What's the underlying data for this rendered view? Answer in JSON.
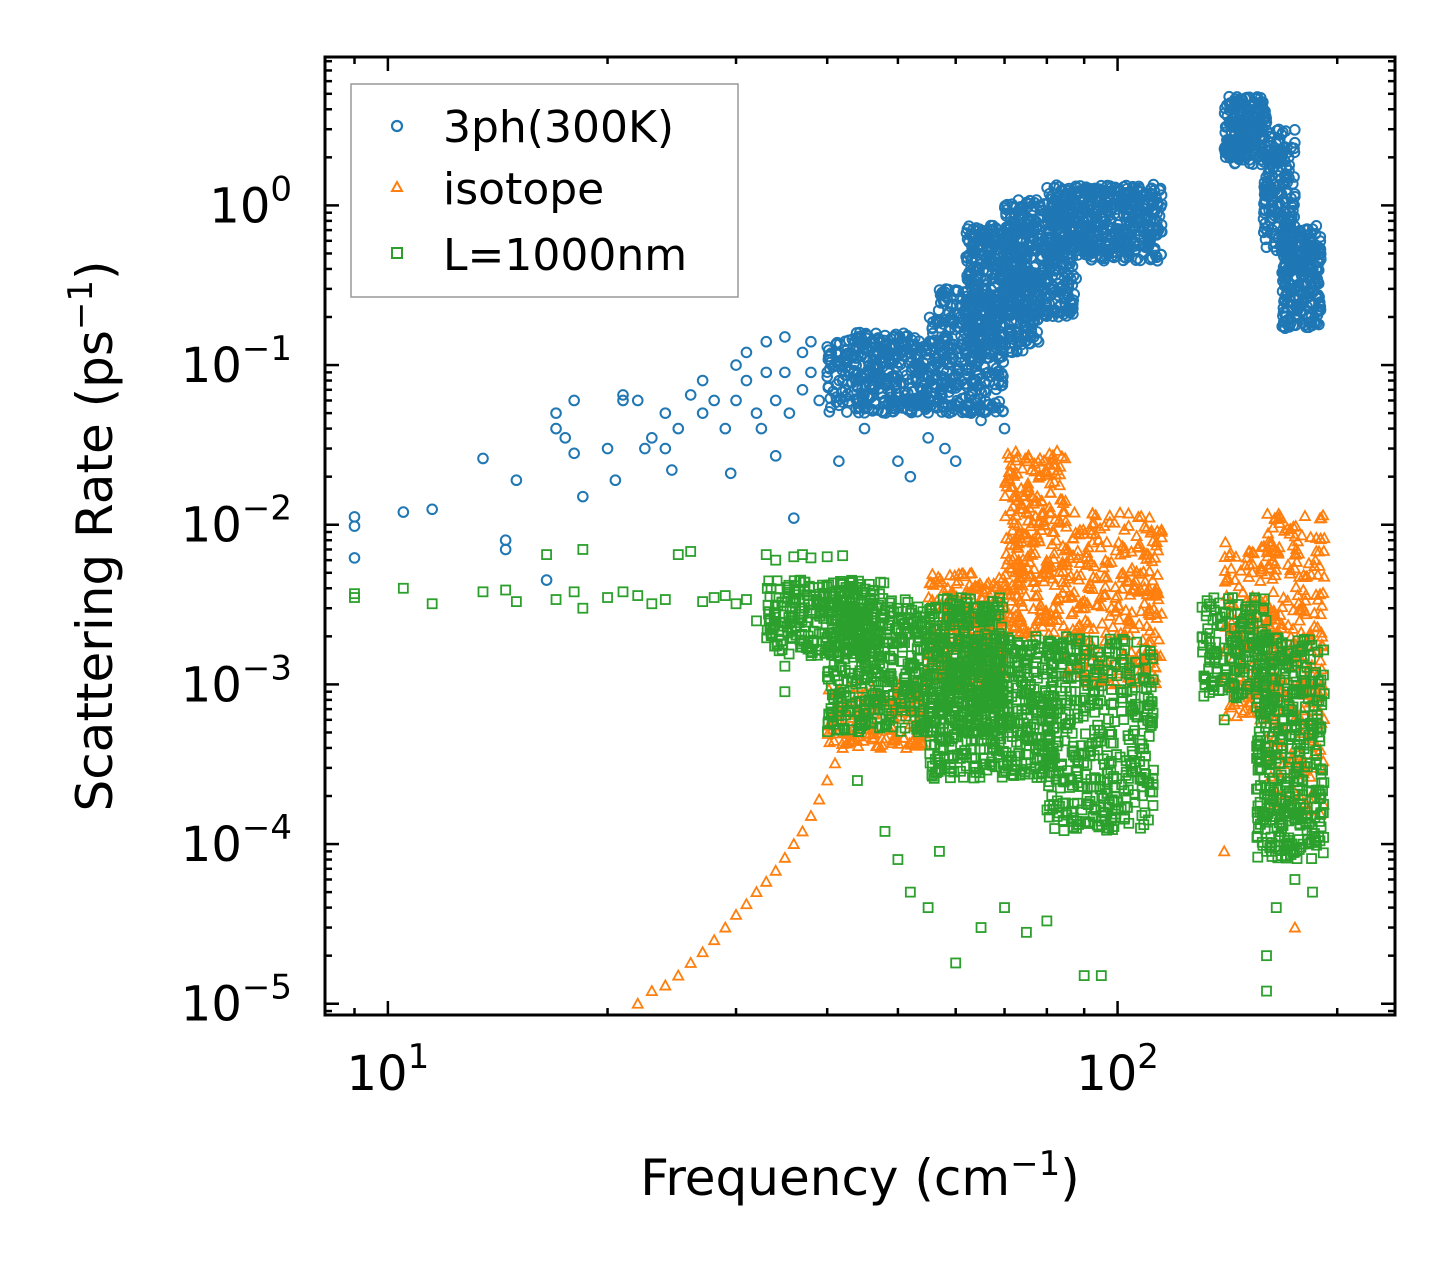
{
  "chart_data": {
    "type": "scatter",
    "xscale": "log",
    "yscale": "log",
    "xlim": [
      8.2,
      240
    ],
    "ylim": [
      8.5e-06,
      8.5
    ],
    "xlabel": {
      "main": "Frequency (cm",
      "sup": "−1",
      "close": ")"
    },
    "ylabel": {
      "main": "Scattering Rate (ps",
      "sup": "−1",
      "close": ")"
    },
    "xticks": [
      {
        "value": 10,
        "base": "10",
        "exp": "1"
      },
      {
        "value": 100,
        "base": "10",
        "exp": "2"
      }
    ],
    "yticks": [
      {
        "value": 1,
        "base": "10",
        "exp": "0"
      },
      {
        "value": 0.1,
        "base": "10",
        "exp": "−1"
      },
      {
        "value": 0.01,
        "base": "10",
        "exp": "−2"
      },
      {
        "value": 0.001,
        "base": "10",
        "exp": "−3"
      },
      {
        "value": 0.0001,
        "base": "10",
        "exp": "−4"
      },
      {
        "value": 1e-05,
        "base": "10",
        "exp": "−5"
      }
    ],
    "legend_position": "top-left",
    "series": [
      {
        "name": "3ph(300K)",
        "marker": "circle",
        "color": "#1f77b4",
        "points": [
          [
            9,
            0.0062
          ],
          [
            9,
            0.0098
          ],
          [
            9,
            0.0112
          ],
          [
            10.5,
            0.012
          ],
          [
            11.5,
            0.0125
          ],
          [
            13.5,
            0.026
          ],
          [
            14.5,
            0.008
          ],
          [
            14.5,
            0.007
          ],
          [
            15,
            0.019
          ],
          [
            16.5,
            0.0045
          ],
          [
            17,
            0.05
          ],
          [
            17,
            0.04
          ],
          [
            17.5,
            0.035
          ],
          [
            18,
            0.028
          ],
          [
            18,
            0.06
          ],
          [
            18.5,
            0.015
          ],
          [
            20,
            0.03
          ],
          [
            20.5,
            0.019
          ],
          [
            21,
            0.065
          ],
          [
            21,
            0.06
          ],
          [
            22,
            0.06
          ],
          [
            22.5,
            0.03
          ],
          [
            23,
            0.035
          ],
          [
            24,
            0.05
          ],
          [
            24,
            0.03
          ],
          [
            24.5,
            0.022
          ],
          [
            25,
            0.04
          ],
          [
            26,
            0.065
          ],
          [
            27,
            0.08
          ],
          [
            27,
            0.05
          ],
          [
            28,
            0.06
          ],
          [
            29,
            0.04
          ],
          [
            29.5,
            0.021
          ],
          [
            30,
            0.1
          ],
          [
            30,
            0.06
          ],
          [
            31,
            0.12
          ],
          [
            31,
            0.08
          ],
          [
            32,
            0.05
          ],
          [
            32.5,
            0.04
          ],
          [
            33,
            0.14
          ],
          [
            33,
            0.09
          ],
          [
            34,
            0.06
          ],
          [
            34,
            0.027
          ],
          [
            35,
            0.15
          ],
          [
            35,
            0.09
          ],
          [
            35.5,
            0.05
          ],
          [
            36,
            0.011
          ],
          [
            37,
            0.12
          ],
          [
            37,
            0.07
          ],
          [
            38,
            0.14
          ],
          [
            38,
            0.09
          ],
          [
            39,
            0.06
          ],
          [
            40,
            0.13
          ],
          [
            41,
            0.1
          ],
          [
            41.5,
            0.025
          ],
          [
            42,
            0.08
          ],
          [
            43,
            0.12
          ],
          [
            44,
            0.06
          ],
          [
            45,
            0.04
          ],
          [
            47,
            0.12
          ],
          [
            48,
            0.06
          ],
          [
            50,
            0.025
          ],
          [
            52,
            0.02
          ],
          [
            55,
            0.035
          ],
          [
            58,
            0.03
          ],
          [
            60,
            0.025
          ],
          [
            63,
            0.05
          ],
          [
            65,
            0.045
          ],
          [
            70,
            0.04
          ]
        ],
        "bands": [
          {
            "x": [
              40,
              55
            ],
            "lo": 0.05,
            "hi": 0.16,
            "n": 360
          },
          {
            "x": [
              55,
              70
            ],
            "lo": 0.05,
            "hi": 0.3,
            "n": 380
          },
          {
            "x": [
              62,
              78
            ],
            "lo": 0.12,
            "hi": 0.75,
            "n": 420
          },
          {
            "x": [
              70,
              88
            ],
            "lo": 0.2,
            "hi": 1.1,
            "n": 380
          },
          {
            "x": [
              80,
              115
            ],
            "lo": 0.45,
            "hi": 1.35,
            "n": 520
          },
          {
            "x": [
              140,
              160
            ],
            "lo": 1.8,
            "hi": 4.8,
            "n": 220
          },
          {
            "x": [
              158,
              175
            ],
            "lo": 0.5,
            "hi": 3.0,
            "n": 200
          },
          {
            "x": [
              168,
              190
            ],
            "lo": 0.17,
            "hi": 0.75,
            "n": 260
          }
        ]
      },
      {
        "name": "isotope",
        "marker": "triangle",
        "color": "#ff7f0e",
        "points": [
          [
            22,
            1e-05
          ],
          [
            23,
            1.2e-05
          ],
          [
            24,
            1.3e-05
          ],
          [
            25,
            1.5e-05
          ],
          [
            26,
            1.8e-05
          ],
          [
            27,
            2.1e-05
          ],
          [
            28,
            2.5e-05
          ],
          [
            29,
            3e-05
          ],
          [
            30,
            3.6e-05
          ],
          [
            31,
            4.2e-05
          ],
          [
            32,
            5e-05
          ],
          [
            33,
            5.8e-05
          ],
          [
            34,
            6.8e-05
          ],
          [
            35,
            8.2e-05
          ],
          [
            36,
            0.0001
          ],
          [
            37,
            0.00012
          ],
          [
            38,
            0.00015
          ],
          [
            39,
            0.00019
          ],
          [
            40,
            0.00025
          ],
          [
            41,
            0.00032
          ],
          [
            42,
            0.0004
          ],
          [
            43,
            0.0005
          ],
          [
            44,
            0.0006
          ],
          [
            46,
            0.0007
          ],
          [
            48,
            0.0008
          ],
          [
            50,
            0.0009
          ],
          [
            75,
            0.012
          ],
          [
            75,
            0.016
          ],
          [
            140,
            9e-05
          ],
          [
            175,
            3e-05
          ]
        ],
        "bands": [
          {
            "x": [
              40,
              55
            ],
            "lo": 0.0004,
            "hi": 0.001,
            "n": 160
          },
          {
            "x": [
              55,
              70
            ],
            "lo": 0.001,
            "hi": 0.005,
            "n": 240
          },
          {
            "x": [
              70,
              85
            ],
            "lo": 0.002,
            "hi": 0.03,
            "n": 280
          },
          {
            "x": [
              85,
              115
            ],
            "lo": 0.001,
            "hi": 0.012,
            "n": 280
          },
          {
            "x": [
              140,
              165
            ],
            "lo": 0.0006,
            "hi": 0.008,
            "n": 160
          },
          {
            "x": [
              160,
              192
            ],
            "lo": 0.00015,
            "hi": 0.012,
            "n": 260
          }
        ]
      },
      {
        "name": "L=1000nm",
        "marker": "square",
        "color": "#2ca02c",
        "points": [
          [
            9,
            0.0035
          ],
          [
            9,
            0.0037
          ],
          [
            10.5,
            0.004
          ],
          [
            11.5,
            0.0032
          ],
          [
            13.5,
            0.0038
          ],
          [
            14.5,
            0.0039
          ],
          [
            15,
            0.0033
          ],
          [
            16.5,
            0.0065
          ],
          [
            17,
            0.0034
          ],
          [
            18,
            0.0038
          ],
          [
            18.5,
            0.003
          ],
          [
            18.5,
            0.007
          ],
          [
            20,
            0.0035
          ],
          [
            21,
            0.0038
          ],
          [
            22,
            0.0036
          ],
          [
            23,
            0.0032
          ],
          [
            24,
            0.0034
          ],
          [
            25,
            0.0065
          ],
          [
            26,
            0.0068
          ],
          [
            27,
            0.0033
          ],
          [
            28,
            0.0035
          ],
          [
            29,
            0.0036
          ],
          [
            30,
            0.0032
          ],
          [
            31,
            0.0034
          ],
          [
            32,
            0.0025
          ],
          [
            33,
            0.0065
          ],
          [
            34,
            0.006
          ],
          [
            35,
            0.0013
          ],
          [
            35,
            0.0009
          ],
          [
            36,
            0.0063
          ],
          [
            37,
            0.0065
          ],
          [
            38,
            0.0062
          ],
          [
            40,
            0.0063
          ],
          [
            42,
            0.0064
          ],
          [
            44,
            0.00025
          ],
          [
            48,
            0.00012
          ],
          [
            50,
            8e-05
          ],
          [
            52,
            5e-05
          ],
          [
            55,
            4e-05
          ],
          [
            57,
            9e-05
          ],
          [
            60,
            1.8e-05
          ],
          [
            65,
            3e-05
          ],
          [
            70,
            4e-05
          ],
          [
            75,
            2.8e-05
          ],
          [
            80,
            3.3e-05
          ],
          [
            90,
            1.5e-05
          ],
          [
            95,
            1.5e-05
          ],
          [
            140,
            0.0006
          ],
          [
            160,
            2e-05
          ],
          [
            160,
            1.2e-05
          ],
          [
            160,
            9e-05
          ],
          [
            165,
            4e-05
          ],
          [
            175,
            6e-05
          ],
          [
            185,
            5e-05
          ]
        ],
        "bands": [
          {
            "x": [
              33,
              48
            ],
            "lo": 0.0015,
            "hi": 0.0045,
            "n": 300
          },
          {
            "x": [
              40,
              70
            ],
            "lo": 0.0005,
            "hi": 0.0035,
            "n": 700
          },
          {
            "x": [
              55,
              82
            ],
            "lo": 0.00025,
            "hi": 0.002,
            "n": 500
          },
          {
            "x": [
              80,
              112
            ],
            "lo": 0.00012,
            "hi": 0.002,
            "n": 420
          },
          {
            "x": [
              130,
              160
            ],
            "lo": 0.0008,
            "hi": 0.0035,
            "n": 160
          },
          {
            "x": [
              155,
              192
            ],
            "lo": 8e-05,
            "hi": 0.002,
            "n": 420
          }
        ]
      }
    ]
  }
}
